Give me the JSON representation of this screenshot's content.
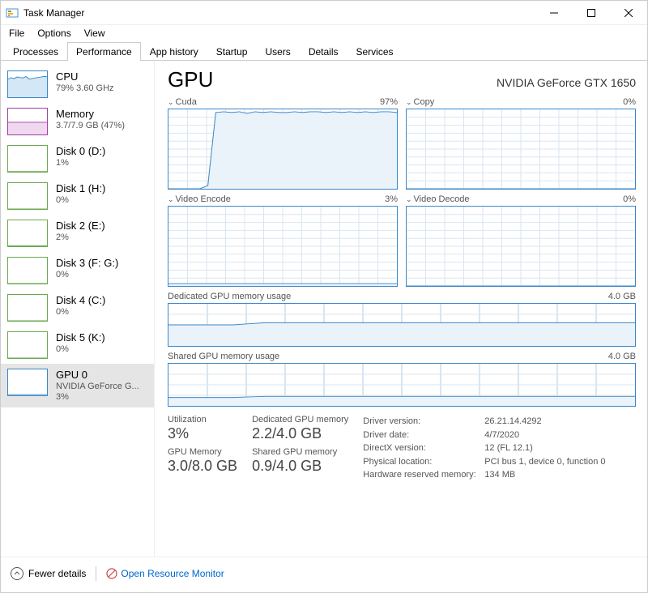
{
  "window": {
    "title": "Task Manager"
  },
  "menu": {
    "file": "File",
    "options": "Options",
    "view": "View"
  },
  "tabs": {
    "processes": "Processes",
    "performance": "Performance",
    "app_history": "App history",
    "startup": "Startup",
    "users": "Users",
    "details": "Details",
    "services": "Services"
  },
  "sidebar": [
    {
      "title": "CPU",
      "sub": "79% 3.60 GHz",
      "thumb": {
        "type": "cpu",
        "border": "#3a86c8",
        "fill": "#d4e7f6",
        "data": [
          70,
          75,
          72,
          78,
          76,
          74,
          80,
          70,
          72,
          74,
          76,
          78,
          80,
          79
        ]
      }
    },
    {
      "title": "Memory",
      "sub": "3.7/7.9 GB (47%)",
      "thumb": {
        "type": "mem",
        "border": "#a040a0",
        "fill": "#f0d8f0",
        "data": [
          47,
          47,
          47,
          47,
          47,
          47,
          47,
          47,
          47,
          47
        ]
      }
    },
    {
      "title": "Disk 0 (D:)",
      "sub": "1%",
      "thumb": {
        "type": "disk",
        "border": "#6aa84f",
        "fill": "#e8f3e2",
        "data": [
          1,
          1,
          1,
          1,
          1,
          1,
          1,
          1,
          1,
          1
        ]
      }
    },
    {
      "title": "Disk 1 (H:)",
      "sub": "0%",
      "thumb": {
        "type": "disk",
        "border": "#6aa84f",
        "fill": "#e8f3e2",
        "data": [
          0,
          0,
          0,
          0,
          0,
          0,
          0,
          0,
          0,
          0
        ]
      }
    },
    {
      "title": "Disk 2 (E:)",
      "sub": "2%",
      "thumb": {
        "type": "disk",
        "border": "#6aa84f",
        "fill": "#e8f3e2",
        "data": [
          2,
          2,
          2,
          2,
          2,
          2,
          2,
          2,
          2,
          2
        ]
      }
    },
    {
      "title": "Disk 3 (F: G:)",
      "sub": "0%",
      "thumb": {
        "type": "disk",
        "border": "#6aa84f",
        "fill": "#e8f3e2",
        "data": [
          0,
          0,
          0,
          0,
          0,
          0,
          0,
          0,
          0,
          0
        ]
      }
    },
    {
      "title": "Disk 4 (C:)",
      "sub": "0%",
      "thumb": {
        "type": "disk",
        "border": "#6aa84f",
        "fill": "#e8f3e2",
        "data": [
          0,
          0,
          0,
          0,
          0,
          0,
          0,
          0,
          0,
          0
        ]
      }
    },
    {
      "title": "Disk 5 (K:)",
      "sub": "0%",
      "thumb": {
        "type": "disk",
        "border": "#6aa84f",
        "fill": "#e8f3e2",
        "data": [
          0,
          0,
          0,
          0,
          0,
          0,
          0,
          0,
          0,
          0
        ]
      }
    },
    {
      "title": "GPU 0",
      "sub": "NVIDIA GeForce G...",
      "sub2": "3%",
      "selected": true,
      "thumb": {
        "type": "gpu",
        "border": "#3a86c8",
        "fill": "#ffffff",
        "data": [
          3,
          3,
          3,
          3,
          3,
          3,
          3,
          3,
          3,
          3
        ]
      }
    }
  ],
  "detail": {
    "title": "GPU",
    "subtitle": "NVIDIA GeForce GTX 1650",
    "charts": {
      "cuda": {
        "label": "Cuda",
        "value": "97%",
        "chevron": true,
        "data": [
          0,
          0,
          0,
          0,
          0,
          4,
          96,
          97,
          96,
          97,
          95,
          97,
          96,
          97,
          96,
          96,
          97,
          96,
          97,
          97,
          96,
          97,
          96,
          97,
          96,
          97,
          96,
          97,
          97,
          96
        ],
        "border": "#3a86c8",
        "fill": "#eaf2fa",
        "grid": "#d8e6f2",
        "ymax": 100,
        "gridlines": 10
      },
      "copy": {
        "label": "Copy",
        "value": "0%",
        "chevron": true,
        "data": [
          0,
          0,
          0,
          0,
          0,
          0,
          0,
          0,
          0,
          0,
          0,
          0,
          0,
          0,
          0,
          0,
          0,
          0,
          0,
          0,
          0,
          0,
          0,
          0,
          0,
          0,
          0,
          0,
          0,
          0
        ],
        "border": "#3a86c8",
        "fill": "#eaf2fa",
        "grid": "#d8e6f2",
        "ymax": 100,
        "gridlines": 10
      },
      "video_encode": {
        "label": "Video Encode",
        "value": "3%",
        "chevron": true,
        "data": [
          3,
          3,
          3,
          3,
          3,
          3,
          3,
          3,
          3,
          3,
          3,
          3,
          3,
          3,
          3,
          3,
          3,
          3,
          3,
          3,
          3,
          3,
          3,
          3,
          3,
          3,
          3,
          3,
          3,
          3
        ],
        "border": "#3a86c8",
        "fill": "#eaf2fa",
        "grid": "#d8e6f2",
        "ymax": 100,
        "gridlines": 10
      },
      "video_decode": {
        "label": "Video Decode",
        "value": "0%",
        "chevron": true,
        "data": [
          0,
          0,
          0,
          0,
          0,
          0,
          0,
          0,
          0,
          0,
          0,
          0,
          0,
          0,
          0,
          0,
          0,
          0,
          0,
          0,
          0,
          0,
          0,
          0,
          0,
          0,
          0,
          0,
          0,
          0
        ],
        "border": "#3a86c8",
        "fill": "#eaf2fa",
        "grid": "#d8e6f2",
        "ymax": 100,
        "gridlines": 10
      },
      "dedicated_mem": {
        "label": "Dedicated GPU memory usage",
        "value": "4.0 GB",
        "data": [
          2.0,
          2.0,
          2.0,
          2.0,
          2.0,
          2.1,
          2.2,
          2.2,
          2.2,
          2.2,
          2.2,
          2.2,
          2.2,
          2.2,
          2.2,
          2.2,
          2.2,
          2.2,
          2.2,
          2.2,
          2.2,
          2.2,
          2.2,
          2.2,
          2.2,
          2.2,
          2.2,
          2.2,
          2.2,
          2.2
        ],
        "border": "#3a86c8",
        "fill": "#eaf2fa",
        "grid": "#d8e6f2",
        "ymax": 4.0,
        "gridlines": 4
      },
      "shared_mem": {
        "label": "Shared GPU memory usage",
        "value": "4.0 GB",
        "data": [
          0.8,
          0.8,
          0.8,
          0.8,
          0.8,
          0.85,
          0.9,
          0.9,
          0.9,
          0.9,
          0.9,
          0.9,
          0.9,
          0.9,
          0.9,
          0.9,
          0.9,
          0.9,
          0.9,
          0.9,
          0.9,
          0.9,
          0.9,
          0.9,
          0.9,
          0.9,
          0.9,
          0.9,
          0.9,
          0.9
        ],
        "border": "#3a86c8",
        "fill": "#eaf2fa",
        "grid": "#d8e6f2",
        "ymax": 4.0,
        "gridlines": 4
      }
    },
    "stats": {
      "utilization": {
        "label": "Utilization",
        "value": "3%"
      },
      "dedicated": {
        "label": "Dedicated GPU memory",
        "value": "2.2/4.0 GB"
      },
      "gpu_memory": {
        "label": "GPU Memory",
        "value": "3.0/8.0 GB"
      },
      "shared": {
        "label": "Shared GPU memory",
        "value": "0.9/4.0 GB"
      }
    },
    "info": [
      {
        "k": "Driver version:",
        "v": "26.21.14.4292"
      },
      {
        "k": "Driver date:",
        "v": "4/7/2020"
      },
      {
        "k": "DirectX version:",
        "v": "12 (FL 12.1)"
      },
      {
        "k": "Physical location:",
        "v": "PCI bus 1, device 0, function 0"
      },
      {
        "k": "Hardware reserved memory:",
        "v": "134 MB"
      }
    ]
  },
  "footer": {
    "fewer": "Fewer details",
    "resmon": "Open Resource Monitor"
  }
}
